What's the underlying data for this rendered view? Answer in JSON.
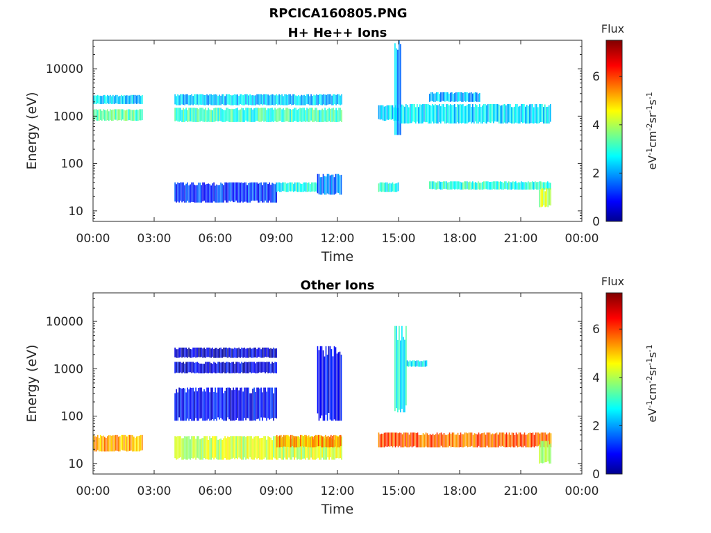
{
  "figure": {
    "title_line1": "RPCICA160805.PNG",
    "title_line2": "H+ He++ Ions"
  },
  "chart_data": [
    {
      "type": "heatmap",
      "title": "H+ He++ Ions",
      "xlabel": "Time",
      "ylabel": "Energy (eV)",
      "x_ticks": [
        "00:00",
        "03:00",
        "06:00",
        "09:00",
        "12:00",
        "15:00",
        "18:00",
        "21:00",
        "00:00"
      ],
      "x_range_hours": [
        0,
        24
      ],
      "y_scale": "log",
      "y_ticks": [
        "10",
        "100",
        "1000",
        "10000"
      ],
      "y_range": [
        6,
        40000
      ],
      "colorbar": {
        "title": "Flux",
        "label": "eV-1cm-2sr-1s-1",
        "ticks": [
          "0",
          "2",
          "4",
          "6"
        ],
        "range": [
          0,
          7.5
        ],
        "colormap": "jet"
      },
      "bands": [
        {
          "t_start": 0.0,
          "t_end": 2.4,
          "e_low": 1800,
          "e_high": 2800,
          "flux": 2.5
        },
        {
          "t_start": 0.0,
          "t_end": 2.4,
          "e_low": 800,
          "e_high": 1400,
          "flux": 3.4
        },
        {
          "t_start": 4.0,
          "t_end": 12.2,
          "e_low": 1700,
          "e_high": 2900,
          "flux": 2.4
        },
        {
          "t_start": 4.0,
          "t_end": 12.2,
          "e_low": 750,
          "e_high": 1500,
          "flux": 3.2
        },
        {
          "t_start": 4.0,
          "t_end": 9.0,
          "e_low": 15,
          "e_high": 40,
          "flux": 1.3
        },
        {
          "t_start": 9.0,
          "t_end": 11.0,
          "e_low": 25,
          "e_high": 40,
          "flux": 3.0
        },
        {
          "t_start": 11.0,
          "t_end": 12.2,
          "e_low": 22,
          "e_high": 60,
          "flux": 1.8
        },
        {
          "t_start": 14.0,
          "t_end": 15.0,
          "e_low": 800,
          "e_high": 1700,
          "flux": 2.6
        },
        {
          "t_start": 14.8,
          "t_end": 15.1,
          "e_low": 400,
          "e_high": 40000,
          "flux": 2.2
        },
        {
          "t_start": 15.0,
          "t_end": 22.5,
          "e_low": 700,
          "e_high": 1800,
          "flux": 2.6
        },
        {
          "t_start": 16.5,
          "t_end": 19.0,
          "e_low": 2000,
          "e_high": 3200,
          "flux": 2.3
        },
        {
          "t_start": 14.0,
          "t_end": 15.0,
          "e_low": 25,
          "e_high": 40,
          "flux": 3.0
        },
        {
          "t_start": 16.5,
          "t_end": 22.5,
          "e_low": 28,
          "e_high": 42,
          "flux": 3.1
        },
        {
          "t_start": 21.9,
          "t_end": 22.5,
          "e_low": 12,
          "e_high": 30,
          "flux": 4.2
        }
      ]
    },
    {
      "type": "heatmap",
      "title": "Other Ions",
      "xlabel": "Time",
      "ylabel": "Energy (eV)",
      "x_ticks": [
        "00:00",
        "03:00",
        "06:00",
        "09:00",
        "12:00",
        "15:00",
        "18:00",
        "21:00",
        "00:00"
      ],
      "x_range_hours": [
        0,
        24
      ],
      "y_scale": "log",
      "y_ticks": [
        "10",
        "100",
        "1000",
        "10000"
      ],
      "y_range": [
        6,
        40000
      ],
      "colorbar": {
        "title": "Flux",
        "label": "eV-1cm-2sr-1s-1",
        "ticks": [
          "0",
          "2",
          "4",
          "6"
        ],
        "range": [
          0,
          7.5
        ],
        "colormap": "jet"
      },
      "bands": [
        {
          "t_start": 0.0,
          "t_end": 2.4,
          "e_low": 18,
          "e_high": 40,
          "flux": 5.3
        },
        {
          "t_start": 4.0,
          "t_end": 9.0,
          "e_low": 1700,
          "e_high": 2800,
          "flux": 0.6
        },
        {
          "t_start": 4.0,
          "t_end": 9.0,
          "e_low": 800,
          "e_high": 1400,
          "flux": 0.7
        },
        {
          "t_start": 4.0,
          "t_end": 9.0,
          "e_low": 80,
          "e_high": 400,
          "flux": 0.9
        },
        {
          "t_start": 11.0,
          "t_end": 12.2,
          "e_low": 80,
          "e_high": 3000,
          "flux": 0.8
        },
        {
          "t_start": 4.0,
          "t_end": 12.2,
          "e_low": 12,
          "e_high": 38,
          "flux": 4.3
        },
        {
          "t_start": 9.0,
          "t_end": 12.2,
          "e_low": 22,
          "e_high": 40,
          "flux": 5.5
        },
        {
          "t_start": 14.8,
          "t_end": 15.4,
          "e_low": 120,
          "e_high": 8000,
          "flux": 3.0
        },
        {
          "t_start": 15.4,
          "t_end": 16.4,
          "e_low": 1100,
          "e_high": 1500,
          "flux": 2.6
        },
        {
          "t_start": 14.0,
          "t_end": 22.5,
          "e_low": 22,
          "e_high": 45,
          "flux": 5.8
        },
        {
          "t_start": 21.9,
          "t_end": 22.5,
          "e_low": 10,
          "e_high": 30,
          "flux": 3.8
        }
      ]
    }
  ]
}
